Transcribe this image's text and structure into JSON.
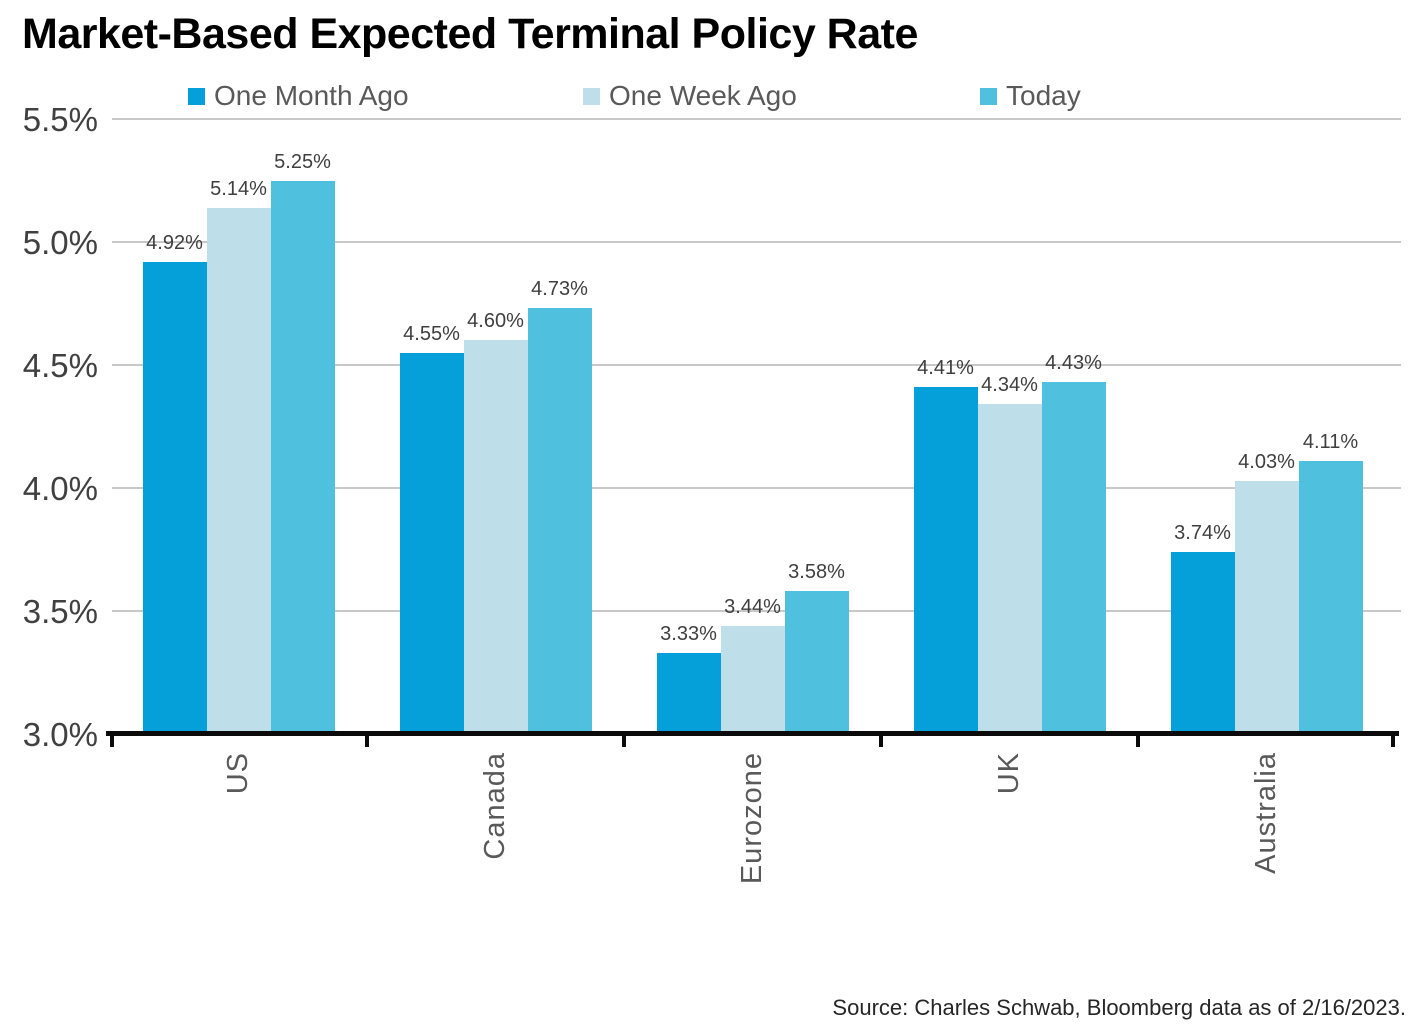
{
  "header": {
    "title": "Market-Based Expected Terminal Policy Rate"
  },
  "footer": {
    "source": "Source: Charles Schwab, Bloomberg data as of 2/16/2023."
  },
  "colors": {
    "background": "#FFFFFF",
    "grid": "#C8C8C8",
    "axis": "#0B0B0B",
    "ytick_label": "#404040",
    "category_label": "#595959",
    "legend_label": "#595959",
    "data_label": "#3F3F3F"
  },
  "chart_data": {
    "type": "bar",
    "title": "Market-Based Expected Terminal Policy Rate",
    "categories": [
      "US",
      "Canada",
      "Eurozone",
      "UK",
      "Australia"
    ],
    "series": [
      {
        "name": "One Month Ago",
        "color": "#059FDA",
        "values": [
          4.92,
          4.55,
          3.33,
          4.41,
          3.74
        ]
      },
      {
        "name": "One Week Ago",
        "color": "#BEDEE9",
        "values": [
          5.14,
          4.6,
          3.44,
          4.34,
          4.03
        ]
      },
      {
        "name": "Today",
        "color": "#4FC1DF",
        "values": [
          5.25,
          4.73,
          3.58,
          4.43,
          4.11
        ]
      }
    ],
    "data_labels": [
      "4.92%",
      "5.14%",
      "5.25%",
      "4.55%",
      "4.60%",
      "4.73%",
      "3.33%",
      "3.44%",
      "3.58%",
      "4.41%",
      "4.34%",
      "4.43%",
      "3.74%",
      "4.03%",
      "4.11%"
    ],
    "ylim": [
      3.0,
      5.5
    ],
    "yticks": [
      3.0,
      3.5,
      4.0,
      4.5,
      5.0,
      5.5
    ],
    "ytick_labels": [
      "3.0%",
      "3.5%",
      "4.0%",
      "4.5%",
      "5.0%",
      "5.5%"
    ],
    "xlabel": "",
    "ylabel": "",
    "grid": true,
    "legend_position": "top",
    "source": "Source: Charles Schwab, Bloomberg data as of 2/16/2023."
  }
}
